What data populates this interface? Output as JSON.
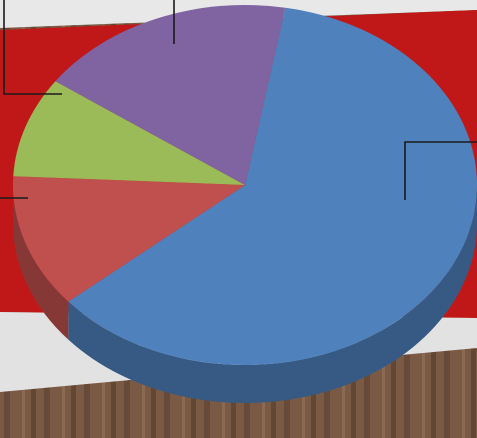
{
  "chart_data": {
    "type": "pie",
    "style": "3d",
    "title": "",
    "legend": "none",
    "data_labels": "none",
    "slices": [
      {
        "value": 61,
        "color": "#4f81bd"
      },
      {
        "value": 12,
        "color": "#c0504d"
      },
      {
        "value": 9,
        "color": "#9bbb59"
      },
      {
        "value": 18,
        "color": "#8064a2"
      }
    ],
    "leader_lines": 4
  },
  "backdrop": {
    "banner_color": "#c01818",
    "rail_color": "#e6e6e6",
    "ground_color": "#7a5a45"
  }
}
